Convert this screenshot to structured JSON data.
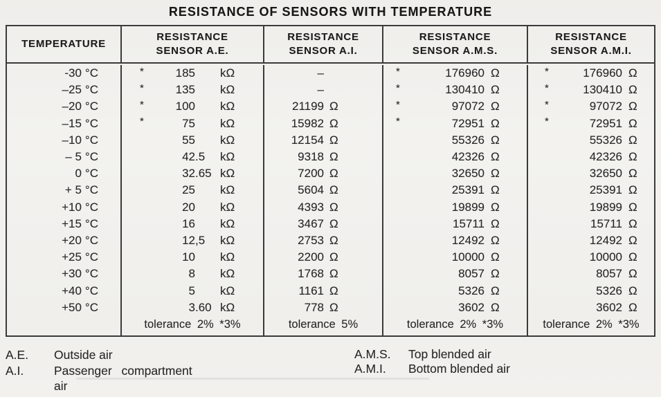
{
  "title": "RESISTANCE OF SENSORS WITH TEMPERATURE",
  "table": {
    "headers": {
      "temperature": "TEMPERATURE",
      "ae_line1": "RESISTANCE",
      "ae_line2": "SENSOR A.E.",
      "ai_line1": "RESISTANCE",
      "ai_line2": "SENSOR A.I.",
      "ams_line1": "RESISTANCE",
      "ams_line2": "SENSOR A.M.S.",
      "ami_line1": "RESISTANCE",
      "ami_line2": "SENSOR A.M.I."
    },
    "rows": [
      {
        "temp": "-30",
        "temp_unit": "°C",
        "ae_star": "*",
        "ae_int": "185",
        "ae_dec": "",
        "ae_unit": "kΩ",
        "ai_val": "–",
        "ai_unit": "",
        "ams_star": "*",
        "ams_val": "176960",
        "ams_unit": "Ω",
        "ami_star": "*",
        "ami_val": "176960",
        "ami_unit": "Ω"
      },
      {
        "temp": "–25",
        "temp_unit": "°C",
        "ae_star": "*",
        "ae_int": "135",
        "ae_dec": "",
        "ae_unit": "kΩ",
        "ai_val": "–",
        "ai_unit": "",
        "ams_star": "*",
        "ams_val": "130410",
        "ams_unit": "Ω",
        "ami_star": "*",
        "ami_val": "130410",
        "ami_unit": "Ω"
      },
      {
        "temp": "–20",
        "temp_unit": "°C",
        "ae_star": "*",
        "ae_int": "100",
        "ae_dec": "",
        "ae_unit": "kΩ",
        "ai_val": "21199",
        "ai_unit": "Ω",
        "ams_star": "*",
        "ams_val": "97072",
        "ams_unit": "Ω",
        "ami_star": "*",
        "ami_val": "97072",
        "ami_unit": "Ω"
      },
      {
        "temp": "–15",
        "temp_unit": "°C",
        "ae_star": "*",
        "ae_int": "75",
        "ae_dec": "",
        "ae_unit": "kΩ",
        "ai_val": "15982",
        "ai_unit": "Ω",
        "ams_star": "*",
        "ams_val": "72951",
        "ams_unit": "Ω",
        "ami_star": "*",
        "ami_val": "72951",
        "ami_unit": "Ω"
      },
      {
        "temp": "–10",
        "temp_unit": "°C",
        "ae_star": "",
        "ae_int": "55",
        "ae_dec": "",
        "ae_unit": "kΩ",
        "ai_val": "12154",
        "ai_unit": "Ω",
        "ams_star": "",
        "ams_val": "55326",
        "ams_unit": "Ω",
        "ami_star": "",
        "ami_val": "55326",
        "ami_unit": "Ω"
      },
      {
        "temp": "– 5",
        "temp_unit": "°C",
        "ae_star": "",
        "ae_int": "42",
        "ae_dec": ".5",
        "ae_unit": "kΩ",
        "ai_val": "9318",
        "ai_unit": "Ω",
        "ams_star": "",
        "ams_val": "42326",
        "ams_unit": "Ω",
        "ami_star": "",
        "ami_val": "42326",
        "ami_unit": "Ω"
      },
      {
        "temp": "0",
        "temp_unit": "°C",
        "ae_star": "",
        "ae_int": "32",
        "ae_dec": ".65",
        "ae_unit": "kΩ",
        "ai_val": "7200",
        "ai_unit": "Ω",
        "ams_star": "",
        "ams_val": "32650",
        "ams_unit": "Ω",
        "ami_star": "",
        "ami_val": "32650",
        "ami_unit": "Ω"
      },
      {
        "temp": "+ 5",
        "temp_unit": "°C",
        "ae_star": "",
        "ae_int": "25",
        "ae_dec": "",
        "ae_unit": "kΩ",
        "ai_val": "5604",
        "ai_unit": "Ω",
        "ams_star": "",
        "ams_val": "25391",
        "ams_unit": "Ω",
        "ami_star": "",
        "ami_val": "25391",
        "ami_unit": "Ω"
      },
      {
        "temp": "+10",
        "temp_unit": "°C",
        "ae_star": "",
        "ae_int": "20",
        "ae_dec": "",
        "ae_unit": "kΩ",
        "ai_val": "4393",
        "ai_unit": "Ω",
        "ams_star": "",
        "ams_val": "19899",
        "ams_unit": "Ω",
        "ami_star": "",
        "ami_val": "19899",
        "ami_unit": "Ω"
      },
      {
        "temp": "+15",
        "temp_unit": "°C",
        "ae_star": "",
        "ae_int": "16",
        "ae_dec": "",
        "ae_unit": "kΩ",
        "ai_val": "3467",
        "ai_unit": "Ω",
        "ams_star": "",
        "ams_val": "15711",
        "ams_unit": "Ω",
        "ami_star": "",
        "ami_val": "15711",
        "ami_unit": "Ω"
      },
      {
        "temp": "+20",
        "temp_unit": "°C",
        "ae_star": "",
        "ae_int": "12",
        "ae_dec": ",5",
        "ae_unit": "kΩ",
        "ai_val": "2753",
        "ai_unit": "Ω",
        "ams_star": "",
        "ams_val": "12492",
        "ams_unit": "Ω",
        "ami_star": "",
        "ami_val": "12492",
        "ami_unit": "Ω"
      },
      {
        "temp": "+25",
        "temp_unit": "°C",
        "ae_star": "",
        "ae_int": "10",
        "ae_dec": "",
        "ae_unit": "kΩ",
        "ai_val": "2200",
        "ai_unit": "Ω",
        "ams_star": "",
        "ams_val": "10000",
        "ams_unit": "Ω",
        "ami_star": "",
        "ami_val": "10000",
        "ami_unit": "Ω"
      },
      {
        "temp": "+30",
        "temp_unit": "°C",
        "ae_star": "",
        "ae_int": "8",
        "ae_dec": "",
        "ae_unit": "kΩ",
        "ai_val": "1768",
        "ai_unit": "Ω",
        "ams_star": "",
        "ams_val": "8057",
        "ams_unit": "Ω",
        "ami_star": "",
        "ami_val": "8057",
        "ami_unit": "Ω"
      },
      {
        "temp": "+40",
        "temp_unit": "°C",
        "ae_star": "",
        "ae_int": "5",
        "ae_dec": "",
        "ae_unit": "kΩ",
        "ai_val": "1161",
        "ai_unit": "Ω",
        "ams_star": "",
        "ams_val": "5326",
        "ams_unit": "Ω",
        "ami_star": "",
        "ami_val": "5326",
        "ami_unit": "Ω"
      },
      {
        "temp": "+50",
        "temp_unit": "°C",
        "ae_star": "",
        "ae_int": "3",
        "ae_dec": ".60",
        "ae_unit": "kΩ",
        "ai_val": "778",
        "ai_unit": "Ω",
        "ams_star": "",
        "ams_val": "3602",
        "ams_unit": "Ω",
        "ami_star": "",
        "ami_val": "3602",
        "ami_unit": "Ω"
      }
    ],
    "tolerance": {
      "ae": "tolerance 2% *3%",
      "ai": "tolerance 5%",
      "ams": "tolerance 2% *3%",
      "ami": "tolerance 2% *3%"
    }
  },
  "legend": {
    "ae_abbr": "A.E.",
    "ae_desc": "Outside air",
    "ai_abbr": "A.I.",
    "ai_desc": "Passenger compartment",
    "ai_desc2": "air",
    "ams_abbr": "A.M.S.",
    "ams_desc": "Top blended air",
    "ami_abbr": "A.M.I.",
    "ami_desc": "Bottom blended air"
  },
  "colors": {
    "background": "#f1f0ed",
    "text": "#262626",
    "border": "#3a3a3a"
  }
}
